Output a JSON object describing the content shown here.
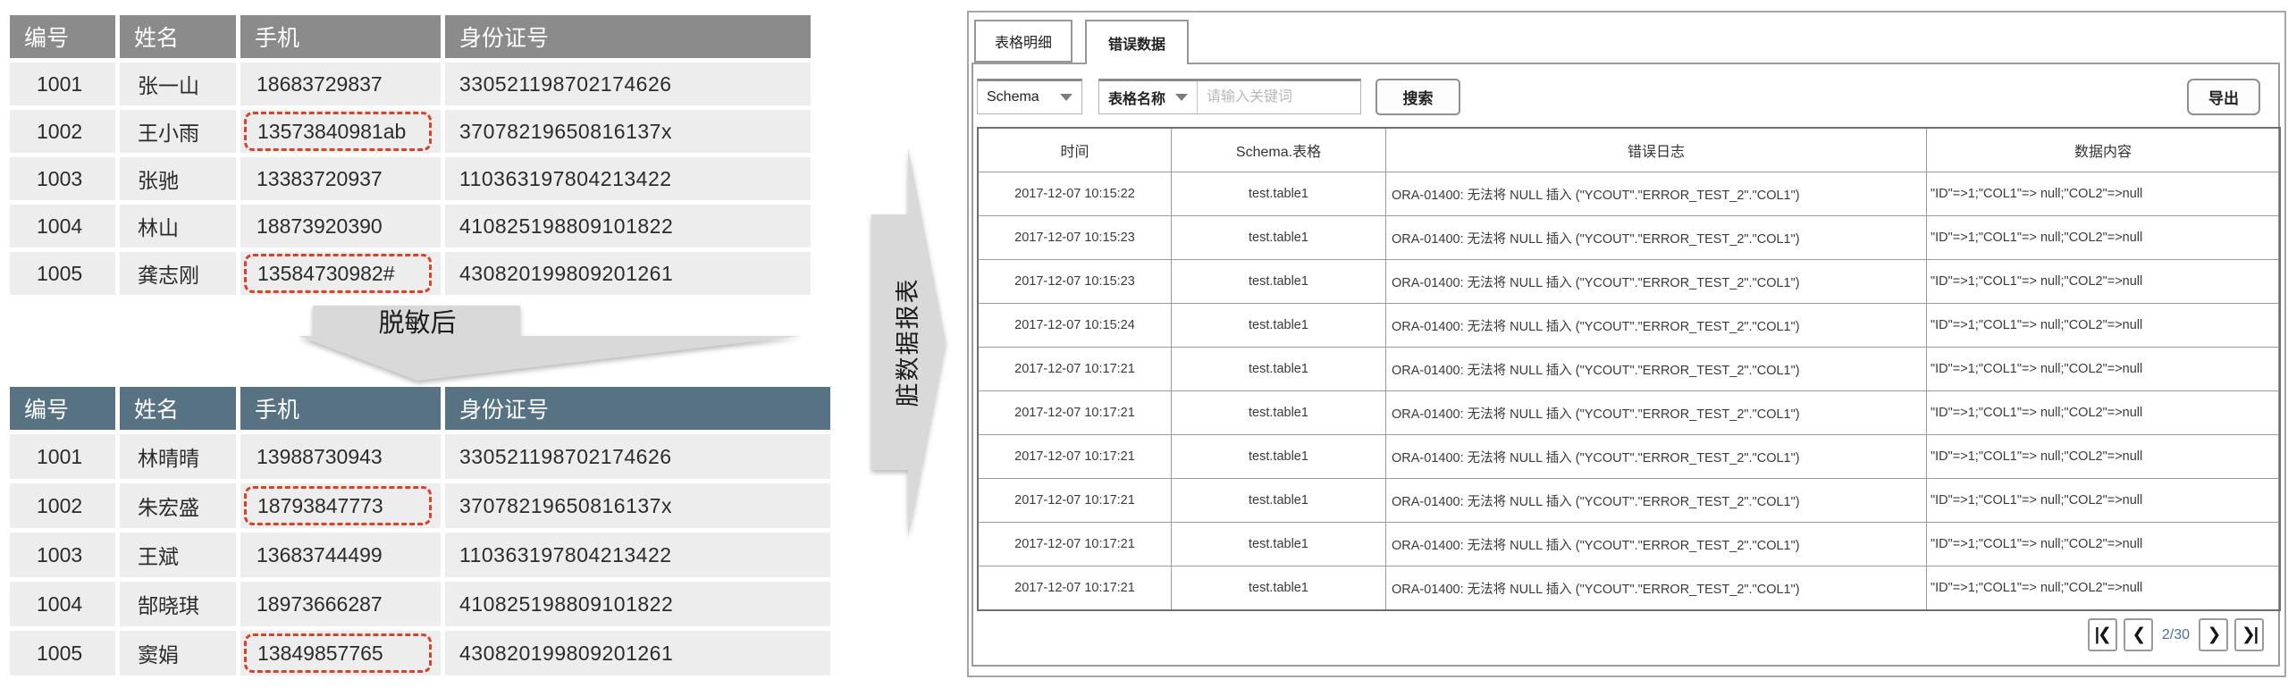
{
  "colors": {
    "dirty_highlight": "#d4432a",
    "source_header_bg": "#8b8b8b",
    "masked_header_bg": "#567283",
    "arrow_fill": "#d9d9d9",
    "page_indicator": "#4a6e96"
  },
  "source_table": {
    "headers": [
      "编号",
      "姓名",
      "手机",
      "身份证号"
    ],
    "rows": [
      {
        "id": "1001",
        "name": "张一山",
        "phone": "18683729837",
        "id_card": "330521198702174626",
        "flagged": false
      },
      {
        "id": "1002",
        "name": "王小雨",
        "phone": "13573840981ab",
        "id_card": "37078219650816137x",
        "flagged": true
      },
      {
        "id": "1003",
        "name": "张驰",
        "phone": "13383720937",
        "id_card": "110363197804213422",
        "flagged": false
      },
      {
        "id": "1004",
        "name": "林山",
        "phone": "18873920390",
        "id_card": "410825198809101822",
        "flagged": false
      },
      {
        "id": "1005",
        "name": "龚志刚",
        "phone": "13584730982#",
        "id_card": "430820199809201261",
        "flagged": true
      }
    ]
  },
  "masked_table": {
    "headers": [
      "编号",
      "姓名",
      "手机",
      "身份证号"
    ],
    "rows": [
      {
        "id": "1001",
        "name": "林晴晴",
        "phone": "13988730943",
        "id_card": "330521198702174626",
        "flagged": false
      },
      {
        "id": "1002",
        "name": "朱宏盛",
        "phone": "18793847773",
        "id_card": "37078219650816137x",
        "flagged": true
      },
      {
        "id": "1003",
        "name": "王斌",
        "phone": "13683744499",
        "id_card": "110363197804213422",
        "flagged": false
      },
      {
        "id": "1004",
        "name": "郜晓琪",
        "phone": "18973666287",
        "id_card": "410825198809101822",
        "flagged": false
      },
      {
        "id": "1005",
        "name": "窦娟",
        "phone": "13849857765",
        "id_card": "430820199809201261",
        "flagged": true
      }
    ]
  },
  "arrows": {
    "down_label": "脱敏后",
    "right_label": "脏数据报表"
  },
  "panel": {
    "tabs": [
      {
        "label": "表格明细",
        "active": false
      },
      {
        "label": "错误数据",
        "active": true
      }
    ],
    "toolbar": {
      "schema_select": "Schema",
      "table_select": "表格名称",
      "search_placeholder": "请输入关键词",
      "search_button": "搜索",
      "export_button": "导出"
    },
    "error_table": {
      "headers": [
        "时间",
        "Schema.表格",
        "错误日志",
        "数据内容"
      ],
      "rows": [
        {
          "time": "2017-12-07 10:15:22",
          "schema_table": "test.table1",
          "error_log": "ORA-01400: 无法将 NULL 插入 (\"YCOUT\".\"ERROR_TEST_2\".\"COL1\")",
          "data_content": "\"ID\"=>1;\"COL1\"=> null;\"COL2\"=>null"
        },
        {
          "time": "2017-12-07 10:15:23",
          "schema_table": "test.table1",
          "error_log": "ORA-01400: 无法将 NULL 插入 (\"YCOUT\".\"ERROR_TEST_2\".\"COL1\")",
          "data_content": "\"ID\"=>1;\"COL1\"=> null;\"COL2\"=>null"
        },
        {
          "time": "2017-12-07 10:15:23",
          "schema_table": "test.table1",
          "error_log": "ORA-01400: 无法将 NULL 插入 (\"YCOUT\".\"ERROR_TEST_2\".\"COL1\")",
          "data_content": "\"ID\"=>1;\"COL1\"=> null;\"COL2\"=>null"
        },
        {
          "time": "2017-12-07 10:15:24",
          "schema_table": "test.table1",
          "error_log": "ORA-01400: 无法将 NULL 插入 (\"YCOUT\".\"ERROR_TEST_2\".\"COL1\")",
          "data_content": "\"ID\"=>1;\"COL1\"=> null;\"COL2\"=>null"
        },
        {
          "time": "2017-12-07 10:17:21",
          "schema_table": "test.table1",
          "error_log": "ORA-01400: 无法将 NULL 插入 (\"YCOUT\".\"ERROR_TEST_2\".\"COL1\")",
          "data_content": "\"ID\"=>1;\"COL1\"=> null;\"COL2\"=>null"
        },
        {
          "time": "2017-12-07 10:17:21",
          "schema_table": "test.table1",
          "error_log": "ORA-01400: 无法将 NULL 插入 (\"YCOUT\".\"ERROR_TEST_2\".\"COL1\")",
          "data_content": "\"ID\"=>1;\"COL1\"=> null;\"COL2\"=>null"
        },
        {
          "time": "2017-12-07 10:17:21",
          "schema_table": "test.table1",
          "error_log": "ORA-01400: 无法将 NULL 插入 (\"YCOUT\".\"ERROR_TEST_2\".\"COL1\")",
          "data_content": "\"ID\"=>1;\"COL1\"=> null;\"COL2\"=>null"
        },
        {
          "time": "2017-12-07 10:17:21",
          "schema_table": "test.table1",
          "error_log": "ORA-01400: 无法将 NULL 插入 (\"YCOUT\".\"ERROR_TEST_2\".\"COL1\")",
          "data_content": "\"ID\"=>1;\"COL1\"=> null;\"COL2\"=>null"
        },
        {
          "time": "2017-12-07 10:17:21",
          "schema_table": "test.table1",
          "error_log": "ORA-01400: 无法将 NULL 插入 (\"YCOUT\".\"ERROR_TEST_2\".\"COL1\")",
          "data_content": "\"ID\"=>1;\"COL1\"=> null;\"COL2\"=>null"
        },
        {
          "time": "2017-12-07 10:17:21",
          "schema_table": "test.table1",
          "error_log": "ORA-01400: 无法将 NULL 插入 (\"YCOUT\".\"ERROR_TEST_2\".\"COL1\")",
          "data_content": "\"ID\"=>1;\"COL1\"=> null;\"COL2\"=>null"
        }
      ]
    },
    "pagination": {
      "first": "|❮",
      "prev": "❮",
      "page": "2/30",
      "next": "❯",
      "last": "❯|"
    }
  }
}
